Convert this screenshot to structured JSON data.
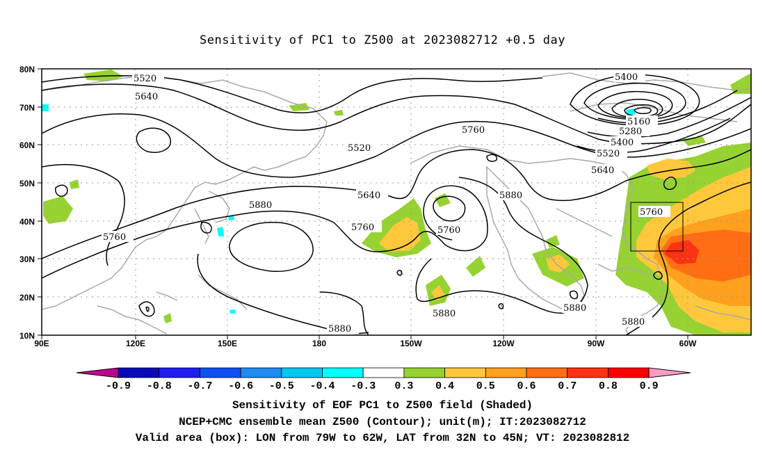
{
  "title": "Sensitivity of PC1 to Z500 at 2023082712 +0.5 day",
  "map": {
    "lon_labels": [
      "90E",
      "120E",
      "150E",
      "180",
      "150W",
      "120W",
      "90W",
      "60W"
    ],
    "lat_labels": [
      "80N",
      "70N",
      "60N",
      "50N",
      "40N",
      "30N",
      "20N",
      "10N"
    ],
    "extent": {
      "lon_min": 90,
      "lon_max": 320,
      "lat_min": 10,
      "lat_max": 80
    },
    "valid_box": {
      "lon_w": "79W",
      "lon_e": "62W",
      "lat_s": "32N",
      "lat_n": "45N"
    },
    "contour_labels": [
      "5520",
      "5640",
      "5760",
      "5880",
      "5400",
      "5160",
      "5280"
    ],
    "grid": "dotted",
    "colors": {
      "land_outline": "#a8a8a8",
      "contour": "#000000"
    }
  },
  "colorbar": {
    "labels": [
      "-0.9",
      "-0.8",
      "-0.7",
      "-0.6",
      "-0.5",
      "-0.4",
      "-0.3",
      "0.3",
      "0.4",
      "0.5",
      "0.6",
      "0.7",
      "0.8",
      "0.9"
    ],
    "colors": [
      "#c0008c",
      "#0a0ab8",
      "#1e1ef0",
      "#0f50f5",
      "#1e8cf0",
      "#00c8f0",
      "#00ffff",
      "#ffffff",
      "#96d232",
      "#ffc83c",
      "#ffa01e",
      "#ff6e14",
      "#ff3214",
      "#ff0000",
      "#ff9bc8"
    ]
  },
  "footer": {
    "line1": "Sensitivity of EOF PC1 to Z500 field (Shaded)",
    "line2": "NCEP+CMC ensemble mean Z500 (Contour); unit(m); IT:2023082712",
    "line3": "Valid area (box): LON from 79W to 62W, LAT from 32N to 45N; VT: 2023082812"
  }
}
